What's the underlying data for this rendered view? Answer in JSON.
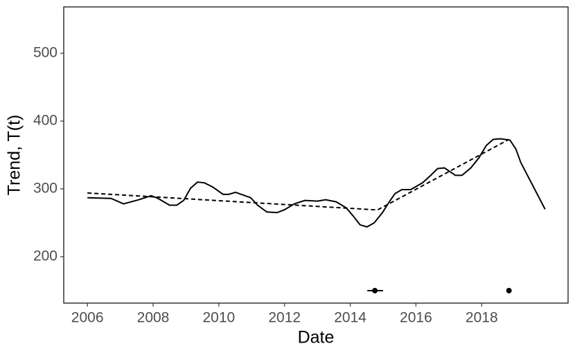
{
  "chart_data": {
    "type": "line",
    "xlabel": "Date",
    "ylabel": "Trend, T(t)",
    "xlim": [
      2005.28,
      2020.63
    ],
    "xticks": [
      2006,
      2008,
      2010,
      2012,
      2014,
      2016,
      2018
    ],
    "ylim": [
      131.6,
      568.4
    ],
    "yticks": [
      200,
      300,
      400,
      500
    ],
    "grid": false,
    "series": [
      {
        "color": "#000000",
        "style": "solid",
        "x": [
          2006.0,
          2006.72,
          2007.1,
          2007.56,
          2007.94,
          2008.15,
          2008.5,
          2008.72,
          2008.93,
          2009.14,
          2009.35,
          2009.56,
          2009.81,
          2010.13,
          2010.3,
          2010.51,
          2010.97,
          2011.18,
          2011.46,
          2011.77,
          2011.99,
          2012.3,
          2012.62,
          2013.0,
          2013.25,
          2013.57,
          2013.88,
          2014.09,
          2014.3,
          2014.51,
          2014.73,
          2014.98,
          2015.19,
          2015.36,
          2015.57,
          2015.84,
          2016.2,
          2016.45,
          2016.66,
          2016.87,
          2017.2,
          2017.4,
          2017.67,
          2017.92,
          2018.14,
          2018.35,
          2018.56,
          2018.86,
          2019.04,
          2019.19,
          2019.93
        ],
        "values": [
          287,
          286,
          278,
          284,
          290,
          286,
          276,
          276,
          283,
          301,
          310,
          309,
          303,
          292,
          292,
          295,
          287,
          276,
          266,
          265,
          269,
          278,
          283,
          282,
          284,
          281,
          272,
          260,
          247,
          244,
          250,
          265,
          281,
          293,
          299,
          299,
          309,
          320,
          330,
          331,
          320,
          320,
          331,
          346,
          364,
          373,
          374,
          372,
          359,
          339,
          270
        ]
      },
      {
        "color": "#000000",
        "style": "dashed",
        "x": [
          2006.0,
          2014.83,
          2018.83
        ],
        "values": [
          294,
          269,
          373
        ]
      }
    ],
    "points": {
      "color": "#000000",
      "x": [
        2014.75,
        2018.83
      ],
      "y": [
        150,
        150
      ],
      "x_low": [
        2014.52,
        null
      ],
      "x_high": [
        2015.0,
        null
      ]
    }
  }
}
